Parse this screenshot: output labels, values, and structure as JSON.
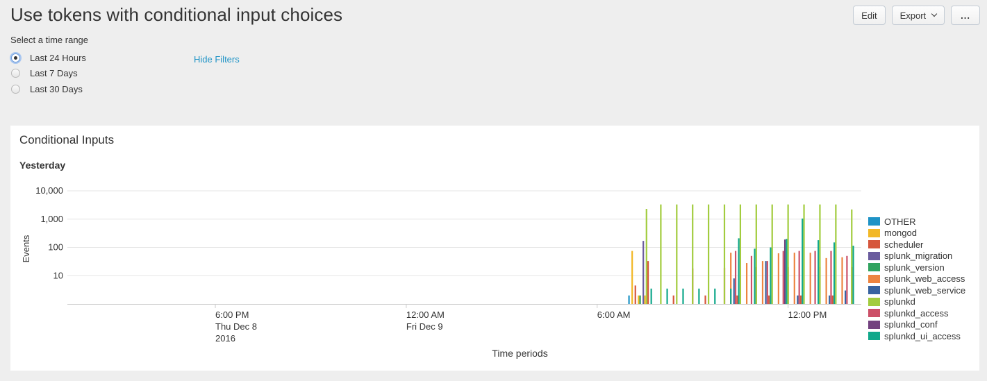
{
  "header": {
    "title": "Use tokens with conditional input choices",
    "edit_label": "Edit",
    "export_label": "Export",
    "more_label": "..."
  },
  "filters": {
    "label": "Select a time range",
    "options": [
      {
        "label": "Last 24 Hours",
        "selected": true
      },
      {
        "label": "Last 7 Days",
        "selected": false
      },
      {
        "label": "Last 30 Days",
        "selected": false
      }
    ],
    "hide_filters_label": "Hide Filters"
  },
  "panel": {
    "title": "Conditional Inputs",
    "viz_title": "Yesterday"
  },
  "chart_data": {
    "type": "bar",
    "title": "Yesterday",
    "xlabel": "Time periods",
    "ylabel": "Events",
    "yscale": "log",
    "ylim": [
      1,
      10000
    ],
    "y_ticks": [
      "10",
      "100",
      "1,000",
      "10,000"
    ],
    "x_ticks": [
      {
        "hour": 18,
        "lines": [
          "6:00 PM",
          "Thu Dec 8",
          "2016"
        ]
      },
      {
        "hour": 24,
        "lines": [
          "12:00 AM",
          "Fri Dec 9"
        ]
      },
      {
        "hour": 30,
        "lines": [
          "6:00 AM"
        ]
      },
      {
        "hour": 36,
        "lines": [
          "12:00 PM"
        ]
      }
    ],
    "x_range_hours": [
      13.35,
      38.3
    ],
    "legend_position": "right",
    "series": [
      {
        "name": "OTHER",
        "color": "#1e93c6",
        "points": [
          [
            31.0,
            2
          ]
        ]
      },
      {
        "name": "mongod",
        "color": "#f2b827",
        "points": [
          [
            31.1,
            75
          ],
          [
            31.3,
            2
          ],
          [
            31.5,
            2
          ]
        ]
      },
      {
        "name": "scheduler",
        "color": "#d6563c",
        "points": [
          [
            31.2,
            4.5
          ],
          [
            31.6,
            33
          ],
          [
            32.4,
            2
          ],
          [
            33.0,
            18
          ],
          [
            33.4,
            2
          ],
          [
            34.0,
            19
          ],
          [
            34.4,
            2
          ],
          [
            35.0,
            20
          ],
          [
            35.4,
            2
          ],
          [
            36.0,
            20
          ],
          [
            36.4,
            2
          ],
          [
            37.0,
            20
          ],
          [
            37.4,
            2
          ],
          [
            38.0,
            20
          ]
        ]
      },
      {
        "name": "splunk_migration",
        "color": "#6a5c9e",
        "points": [
          [
            31.45,
            170
          ]
        ]
      },
      {
        "name": "splunk_version",
        "color": "#31a35f",
        "points": [
          [
            31.35,
            2
          ]
        ]
      },
      {
        "name": "splunk_web_access",
        "color": "#ed8440",
        "points": [
          [
            34.2,
            65
          ],
          [
            34.7,
            28
          ],
          [
            35.2,
            33
          ],
          [
            35.7,
            62
          ],
          [
            36.2,
            65
          ],
          [
            36.7,
            65
          ],
          [
            37.2,
            42
          ],
          [
            37.7,
            45
          ]
        ]
      },
      {
        "name": "splunk_web_service",
        "color": "#3863a0",
        "points": [
          [
            34.3,
            8
          ],
          [
            35.3,
            33
          ],
          [
            36.3,
            2
          ],
          [
            37.3,
            2
          ],
          [
            37.8,
            3
          ]
        ]
      },
      {
        "name": "splunkd",
        "color": "#a2cc3e",
        "points": [
          [
            31.55,
            2300
          ],
          [
            32.0,
            3300
          ],
          [
            32.5,
            3300
          ],
          [
            33.0,
            3300
          ],
          [
            33.5,
            3300
          ],
          [
            34.0,
            3300
          ],
          [
            34.5,
            3300
          ],
          [
            35.0,
            3300
          ],
          [
            35.5,
            3300
          ],
          [
            36.0,
            3300
          ],
          [
            36.5,
            3300
          ],
          [
            37.0,
            3300
          ],
          [
            37.5,
            3300
          ],
          [
            38.0,
            2200
          ]
        ]
      },
      {
        "name": "splunkd_access",
        "color": "#cc5068",
        "points": [
          [
            34.35,
            75
          ],
          [
            34.85,
            50
          ],
          [
            35.35,
            33
          ],
          [
            35.85,
            75
          ],
          [
            36.35,
            75
          ],
          [
            36.85,
            75
          ],
          [
            37.35,
            75
          ],
          [
            37.85,
            50
          ]
        ]
      },
      {
        "name": "splunkd_conf",
        "color": "#73427f",
        "points": [
          [
            35.9,
            190
          ]
        ]
      },
      {
        "name": "splunkd_ui_access",
        "color": "#11a88b",
        "points": [
          [
            31.7,
            3.5
          ],
          [
            32.2,
            3.5
          ],
          [
            32.7,
            3.5
          ],
          [
            33.2,
            3.5
          ],
          [
            33.7,
            3.5
          ],
          [
            34.2,
            3.5
          ],
          [
            34.45,
            210
          ],
          [
            34.95,
            90
          ],
          [
            35.45,
            100
          ],
          [
            35.95,
            200
          ],
          [
            36.45,
            1050
          ],
          [
            36.95,
            180
          ],
          [
            37.45,
            150
          ],
          [
            38.05,
            115
          ]
        ]
      }
    ]
  }
}
